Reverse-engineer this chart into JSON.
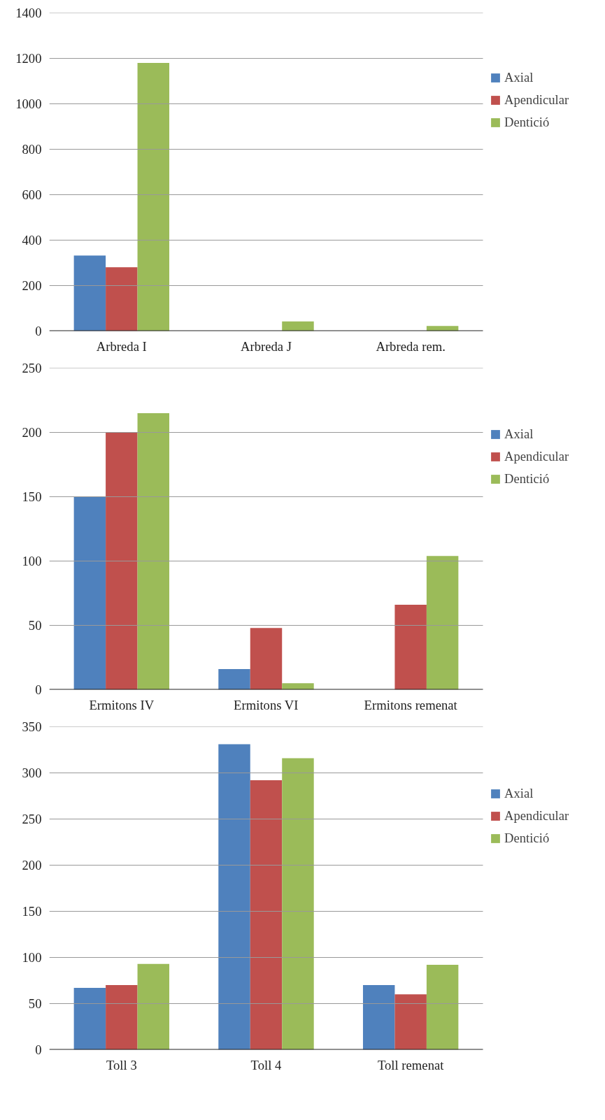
{
  "chart_data": [
    {
      "type": "bar",
      "categories": [
        "Arbreda I",
        "Arbreda J",
        "Arbreda rem."
      ],
      "ylim": [
        0,
        1400
      ],
      "yticks": [
        0,
        200,
        400,
        600,
        800,
        1000,
        1200,
        1400
      ],
      "grid": "y",
      "legend": "right",
      "series": [
        {
          "name": "Axial",
          "color": "#4f81bd",
          "values": [
            332,
            0,
            0
          ]
        },
        {
          "name": "Apendicular",
          "color": "#c0504d",
          "values": [
            281,
            0,
            0
          ]
        },
        {
          "name": "Dentició",
          "color": "#9bbb59",
          "values": [
            1180,
            42,
            22
          ]
        }
      ]
    },
    {
      "type": "bar",
      "categories": [
        "Ermitons IV",
        "Ermitons VI",
        "Ermitons remenat"
      ],
      "ylim": [
        0,
        250
      ],
      "yticks": [
        0,
        50,
        100,
        150,
        200,
        250
      ],
      "grid": "y",
      "legend": "right",
      "series": [
        {
          "name": "Axial",
          "color": "#4f81bd",
          "values": [
            150,
            16,
            0
          ]
        },
        {
          "name": "Apendicular",
          "color": "#c0504d",
          "values": [
            200,
            48,
            66
          ]
        },
        {
          "name": "Dentició",
          "color": "#9bbb59",
          "values": [
            215,
            5,
            104
          ]
        }
      ]
    },
    {
      "type": "bar",
      "categories": [
        "Toll 3",
        "Toll 4",
        "Toll remenat"
      ],
      "ylim": [
        0,
        350
      ],
      "yticks": [
        0,
        50,
        100,
        150,
        200,
        250,
        300,
        350
      ],
      "grid": "y",
      "legend": "right",
      "series": [
        {
          "name": "Axial",
          "color": "#4f81bd",
          "values": [
            67,
            331,
            70
          ]
        },
        {
          "name": "Apendicular",
          "color": "#c0504d",
          "values": [
            70,
            292,
            60
          ]
        },
        {
          "name": "Dentició",
          "color": "#9bbb59",
          "values": [
            93,
            316,
            92
          ]
        }
      ]
    }
  ]
}
